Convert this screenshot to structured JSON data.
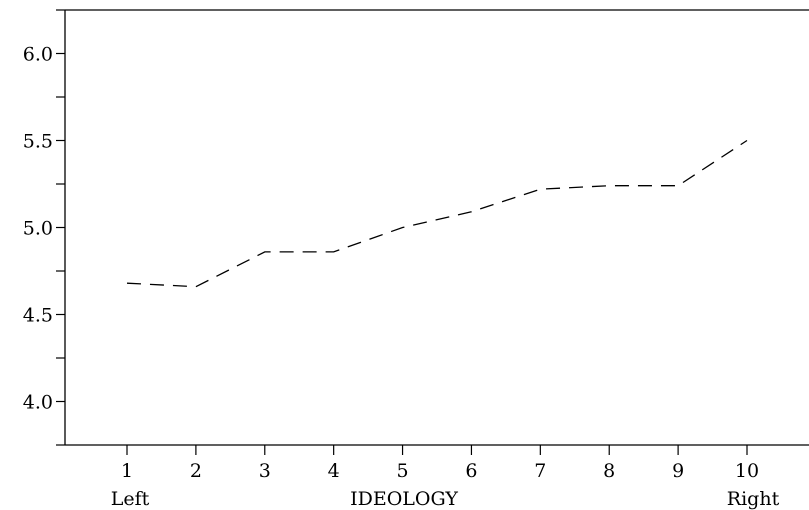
{
  "chart_data": {
    "type": "line",
    "x": [
      1,
      2,
      3,
      4,
      5,
      6,
      7,
      8,
      9,
      10
    ],
    "series": [
      {
        "values": [
          4.68,
          4.66,
          4.86,
          4.86,
          5.0,
          5.09,
          5.22,
          5.24,
          5.24,
          5.5
        ]
      }
    ],
    "xlabel": "IDEOLOGY",
    "x_end_labels": {
      "left": "Left",
      "right": "Right"
    },
    "xlim": [
      0.1,
      10.9
    ],
    "ylim": [
      3.75,
      6.25
    ],
    "y_major_ticks": [
      "4.0",
      "4.5",
      "5.0",
      "5.5",
      "6.0"
    ],
    "y_minor_step": 0.25,
    "x_ticks": [
      "1",
      "2",
      "3",
      "4",
      "5",
      "6",
      "7",
      "8",
      "9",
      "10"
    ],
    "grid": false,
    "legend": "none",
    "line_style": "dashed",
    "line_color": "#000000"
  }
}
